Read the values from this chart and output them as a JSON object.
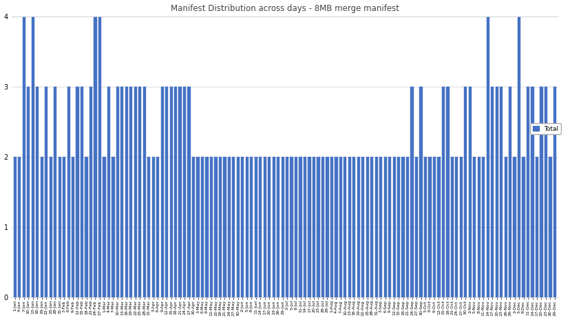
{
  "title": "Manifest Distribution across days - 8MB merge manifest",
  "bar_color": "#4472C4",
  "legend_label": "Total",
  "legend_color": "#4472C4",
  "ylim": [
    0,
    4
  ],
  "yticks": [
    0,
    1,
    2,
    3,
    4
  ],
  "labels_and_values": [
    [
      "1-Jan",
      2
    ],
    [
      "4-Jan",
      2
    ],
    [
      "7-Jan",
      4
    ],
    [
      "10-Jan",
      3
    ],
    [
      "13-Jan",
      4
    ],
    [
      "16-Jan",
      3
    ],
    [
      "19-Jan",
      2
    ],
    [
      "22-Jan",
      3
    ],
    [
      "25-Jan",
      2
    ],
    [
      "28-Jan",
      3
    ],
    [
      "31-Jan",
      2
    ],
    [
      "3-Feb",
      2
    ],
    [
      "6-Feb",
      3
    ],
    [
      "9-Feb",
      2
    ],
    [
      "12-Feb",
      3
    ],
    [
      "15-Feb",
      3
    ],
    [
      "18-Feb",
      2
    ],
    [
      "21-Feb",
      3
    ],
    [
      "24-Feb",
      4
    ],
    [
      "27-Feb",
      4
    ],
    [
      "1-Mar",
      2
    ],
    [
      "4-Mar",
      3
    ],
    [
      "7-Mar",
      2
    ],
    [
      "10-Mar",
      3
    ],
    [
      "13-Mar",
      3
    ],
    [
      "16-Mar",
      3
    ],
    [
      "19-Mar",
      3
    ],
    [
      "22-Mar",
      3
    ],
    [
      "25-Mar",
      3
    ],
    [
      "28-Mar",
      3
    ],
    [
      "31-Mar",
      2
    ],
    [
      "3-Apr",
      2
    ],
    [
      "6-Apr",
      2
    ],
    [
      "9-Apr",
      3
    ],
    [
      "12-Apr",
      3
    ],
    [
      "15-Apr",
      3
    ],
    [
      "18-Apr",
      3
    ],
    [
      "21-Apr",
      3
    ],
    [
      "24-Apr",
      3
    ],
    [
      "27-Apr",
      3
    ],
    [
      "30-Apr",
      2
    ],
    [
      "3-May",
      2
    ],
    [
      "6-May",
      2
    ],
    [
      "9-May",
      2
    ],
    [
      "12-May",
      2
    ],
    [
      "15-May",
      2
    ],
    [
      "18-May",
      2
    ],
    [
      "21-May",
      2
    ],
    [
      "24-May",
      2
    ],
    [
      "27-May",
      2
    ],
    [
      "30-May",
      2
    ],
    [
      "2-Jun",
      2
    ],
    [
      "5-Jun",
      2
    ],
    [
      "8-Jun",
      2
    ],
    [
      "11-Jun",
      2
    ],
    [
      "14-Jun",
      2
    ],
    [
      "17-Jun",
      2
    ],
    [
      "20-Jun",
      2
    ],
    [
      "23-Jun",
      2
    ],
    [
      "26-Jun",
      2
    ],
    [
      "29-Jun",
      2
    ],
    [
      "2-Jul",
      2
    ],
    [
      "5-Jul",
      2
    ],
    [
      "8-Jul",
      2
    ],
    [
      "11-Jul",
      2
    ],
    [
      "14-Jul",
      2
    ],
    [
      "17-Jul",
      2
    ],
    [
      "20-Jul",
      2
    ],
    [
      "23-Jul",
      2
    ],
    [
      "26-Jul",
      2
    ],
    [
      "29-Jul",
      2
    ],
    [
      "1-Aug",
      2
    ],
    [
      "4-Aug",
      2
    ],
    [
      "7-Aug",
      2
    ],
    [
      "10-Aug",
      2
    ],
    [
      "13-Aug",
      2
    ],
    [
      "16-Aug",
      2
    ],
    [
      "19-Aug",
      2
    ],
    [
      "22-Aug",
      2
    ],
    [
      "25-Aug",
      2
    ],
    [
      "28-Aug",
      2
    ],
    [
      "31-Aug",
      2
    ],
    [
      "3-Sep",
      2
    ],
    [
      "6-Sep",
      2
    ],
    [
      "9-Sep",
      2
    ],
    [
      "12-Sep",
      2
    ],
    [
      "15-Sep",
      2
    ],
    [
      "18-Sep",
      2
    ],
    [
      "21-Sep",
      2
    ],
    [
      "24-Sep",
      3
    ],
    [
      "27-Sep",
      2
    ],
    [
      "30-Sep",
      3
    ],
    [
      "3-Oct",
      2
    ],
    [
      "6-Oct",
      2
    ],
    [
      "9-Oct",
      2
    ],
    [
      "12-Oct",
      2
    ],
    [
      "15-Oct",
      3
    ],
    [
      "18-Oct",
      3
    ],
    [
      "21-Oct",
      2
    ],
    [
      "24-Oct",
      2
    ],
    [
      "27-Oct",
      2
    ],
    [
      "30-Oct",
      3
    ],
    [
      "2-Nov",
      3
    ],
    [
      "5-Nov",
      2
    ],
    [
      "8-Nov",
      2
    ],
    [
      "11-Nov",
      2
    ],
    [
      "14-Nov",
      4
    ],
    [
      "17-Nov",
      3
    ],
    [
      "20-Nov",
      3
    ],
    [
      "23-Nov",
      3
    ],
    [
      "26-Nov",
      2
    ],
    [
      "29-Nov",
      3
    ],
    [
      "2-Dec",
      2
    ],
    [
      "5-Dec",
      4
    ],
    [
      "8-Dec",
      2
    ],
    [
      "11-Dec",
      3
    ],
    [
      "14-Dec",
      3
    ],
    [
      "17-Dec",
      2
    ],
    [
      "20-Dec",
      3
    ],
    [
      "23-Dec",
      3
    ],
    [
      "26-Dec",
      2
    ],
    [
      "29-Dec",
      3
    ]
  ]
}
